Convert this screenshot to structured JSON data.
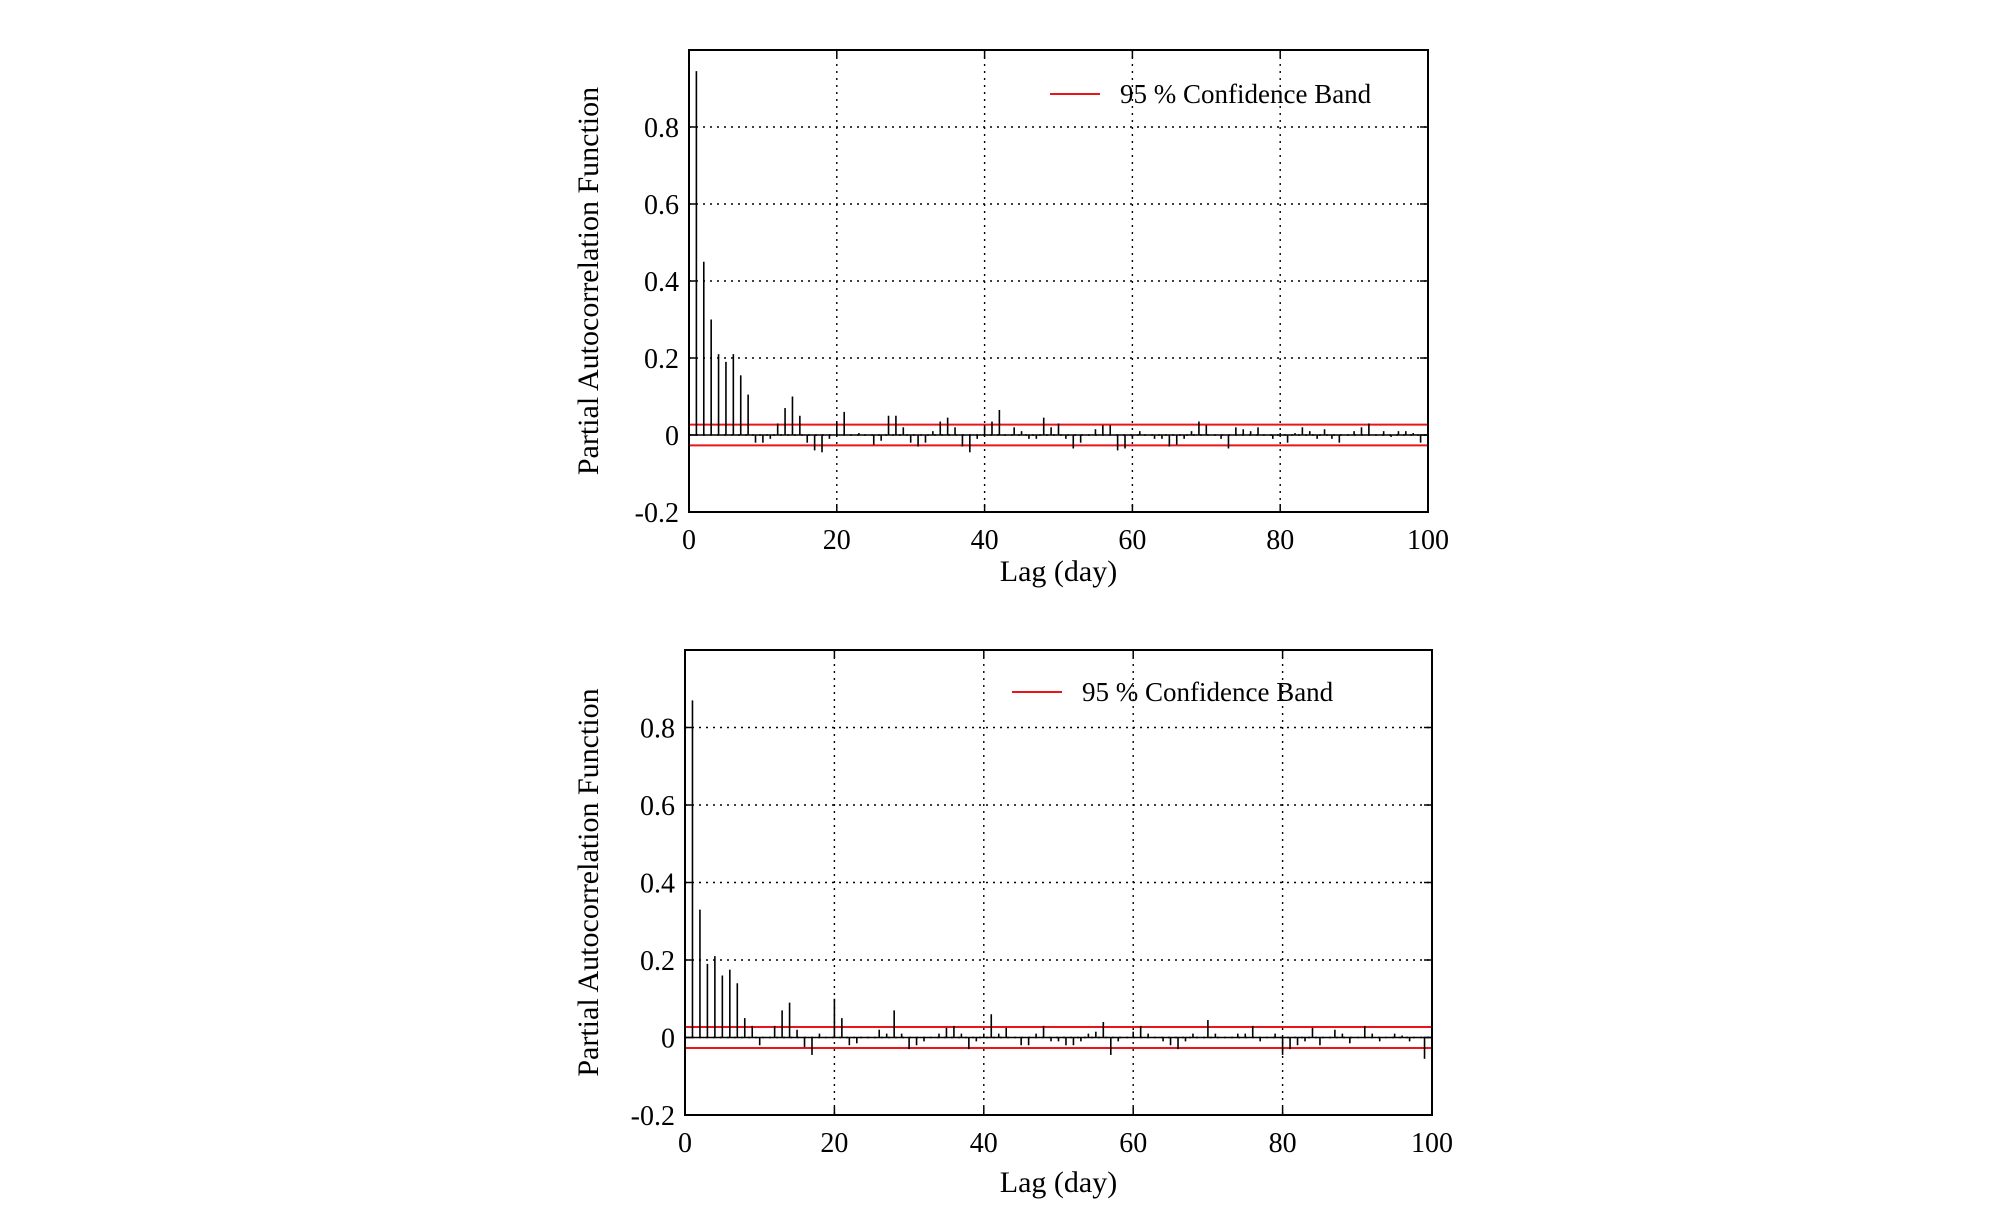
{
  "chart_data": [
    {
      "type": "bar",
      "xlabel": "Lag (day)",
      "ylabel": "Partial Autocorrelation Function",
      "xlim": [
        0,
        100
      ],
      "ylim": [
        -0.2,
        1.0
      ],
      "xticks": [
        0,
        20,
        40,
        60,
        80,
        100
      ],
      "xtick_labels": [
        "0",
        "20",
        "40",
        "60",
        "80",
        "100"
      ],
      "yticks": [
        -0.2,
        0,
        0.2,
        0.4,
        0.6,
        0.8
      ],
      "ytick_labels": [
        "-0.2",
        "0",
        "0.2",
        "0.4",
        "0.6",
        "0.8"
      ],
      "grid": true,
      "legend": {
        "position": "top-right",
        "entries": [
          "95 % Confidence Band"
        ]
      },
      "confidence_band": [
        -0.027,
        0.027
      ],
      "band_color": "#e8161b",
      "bar_color": "#000000",
      "lags": [
        1,
        2,
        3,
        4,
        5,
        6,
        7,
        8,
        9,
        10,
        11,
        12,
        13,
        14,
        15,
        16,
        17,
        18,
        19,
        20,
        21,
        22,
        23,
        24,
        25,
        26,
        27,
        28,
        29,
        30,
        31,
        32,
        33,
        34,
        35,
        36,
        37,
        38,
        39,
        40,
        41,
        42,
        43,
        44,
        45,
        46,
        47,
        48,
        49,
        50,
        51,
        52,
        53,
        54,
        55,
        56,
        57,
        58,
        59,
        60,
        61,
        62,
        63,
        64,
        65,
        66,
        67,
        68,
        69,
        70,
        71,
        72,
        73,
        74,
        75,
        76,
        77,
        78,
        79,
        80,
        81,
        82,
        83,
        84,
        85,
        86,
        87,
        88,
        89,
        90,
        91,
        92,
        93,
        94,
        95,
        96,
        97,
        98,
        99,
        100
      ],
      "values": [
        0.945,
        0.45,
        0.3,
        0.21,
        0.19,
        0.21,
        0.155,
        0.105,
        -0.02,
        -0.02,
        -0.01,
        0.03,
        0.07,
        0.1,
        0.05,
        -0.02,
        -0.04,
        -0.045,
        -0.01,
        0.035,
        0.06,
        0.0,
        0.005,
        0.0,
        -0.025,
        -0.015,
        0.05,
        0.05,
        0.02,
        -0.02,
        -0.03,
        -0.02,
        0.01,
        0.035,
        0.045,
        0.02,
        -0.03,
        -0.045,
        -0.01,
        0.025,
        0.035,
        0.065,
        0.0,
        0.02,
        0.01,
        -0.01,
        -0.01,
        0.045,
        0.02,
        0.03,
        -0.01,
        -0.035,
        -0.02,
        0.0,
        0.015,
        0.025,
        0.025,
        -0.04,
        -0.035,
        -0.01,
        0.01,
        0.0,
        -0.01,
        -0.01,
        -0.03,
        -0.025,
        -0.01,
        0.01,
        0.035,
        0.025,
        0.0,
        -0.01,
        -0.035,
        0.02,
        0.015,
        0.01,
        0.02,
        0.0,
        -0.01,
        0.005,
        -0.02,
        0.005,
        0.02,
        0.01,
        -0.01,
        0.015,
        -0.01,
        -0.02,
        0.0,
        0.01,
        0.02,
        0.03,
        0.0,
        0.01,
        -0.005,
        0.01,
        0.01,
        0.005,
        -0.02,
        0.0
      ]
    },
    {
      "type": "bar",
      "xlabel": "Lag (day)",
      "ylabel": "Partial Autocorrelation Function",
      "xlim": [
        0,
        100
      ],
      "ylim": [
        -0.2,
        1.0
      ],
      "xticks": [
        0,
        20,
        40,
        60,
        80,
        100
      ],
      "xtick_labels": [
        "0",
        "20",
        "40",
        "60",
        "80",
        "100"
      ],
      "yticks": [
        -0.2,
        0,
        0.2,
        0.4,
        0.6,
        0.8
      ],
      "ytick_labels": [
        "-0.2",
        "0",
        "0.2",
        "0.4",
        "0.6",
        "0.8"
      ],
      "grid": true,
      "legend": {
        "position": "top-right",
        "entries": [
          "95 % Confidence Band"
        ]
      },
      "confidence_band": [
        -0.027,
        0.027
      ],
      "band_color": "#e8161b",
      "bar_color": "#000000",
      "lags": [
        1,
        2,
        3,
        4,
        5,
        6,
        7,
        8,
        9,
        10,
        11,
        12,
        13,
        14,
        15,
        16,
        17,
        18,
        19,
        20,
        21,
        22,
        23,
        24,
        25,
        26,
        27,
        28,
        29,
        30,
        31,
        32,
        33,
        34,
        35,
        36,
        37,
        38,
        39,
        40,
        41,
        42,
        43,
        44,
        45,
        46,
        47,
        48,
        49,
        50,
        51,
        52,
        53,
        54,
        55,
        56,
        57,
        58,
        59,
        60,
        61,
        62,
        63,
        64,
        65,
        66,
        67,
        68,
        69,
        70,
        71,
        72,
        73,
        74,
        75,
        76,
        77,
        78,
        79,
        80,
        81,
        82,
        83,
        84,
        85,
        86,
        87,
        88,
        89,
        90,
        91,
        92,
        93,
        94,
        95,
        96,
        97,
        98,
        99,
        100
      ],
      "values": [
        0.87,
        0.33,
        0.19,
        0.21,
        0.16,
        0.175,
        0.14,
        0.05,
        0.03,
        -0.02,
        0.0,
        0.03,
        0.07,
        0.09,
        0.02,
        -0.025,
        -0.045,
        0.01,
        0.0,
        0.1,
        0.05,
        -0.02,
        -0.015,
        0.0,
        0.0,
        0.02,
        0.01,
        0.07,
        0.01,
        -0.03,
        -0.02,
        -0.01,
        0.0,
        0.01,
        0.025,
        0.03,
        0.01,
        -0.03,
        -0.01,
        0.01,
        0.06,
        0.01,
        0.025,
        0.0,
        -0.02,
        -0.02,
        0.01,
        0.03,
        -0.01,
        -0.01,
        -0.02,
        -0.02,
        -0.01,
        0.01,
        0.015,
        0.04,
        -0.045,
        -0.01,
        0.0,
        0.015,
        0.03,
        0.01,
        0.0,
        -0.01,
        -0.02,
        -0.03,
        -0.01,
        0.01,
        0.0,
        0.045,
        0.01,
        0.0,
        0.0,
        0.01,
        0.01,
        0.03,
        -0.01,
        0.0,
        0.01,
        -0.045,
        -0.03,
        -0.02,
        -0.01,
        0.025,
        -0.02,
        0.0,
        0.02,
        0.01,
        -0.015,
        0.0,
        0.03,
        0.01,
        -0.01,
        0.0,
        0.01,
        0.005,
        -0.01,
        0.0,
        -0.055,
        -0.04
      ]
    }
  ]
}
